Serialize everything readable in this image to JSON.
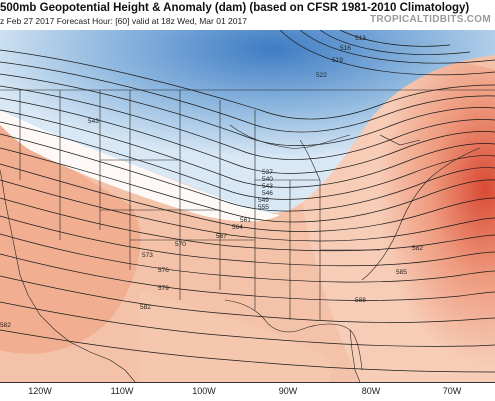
{
  "header": {
    "title": "500mb Geopotential Height & Anomaly (dam) (based on CFSR 1981-2010 Climatology)",
    "subtitle": "z Feb 27 2017   Forecast Hour: [60]   valid at 18z Wed, Mar 01 2017",
    "brand": "TROPICALTIDBITS.COM"
  },
  "map": {
    "contour_labels": [
      "513",
      "516",
      "519",
      "522",
      "543",
      "537",
      "540",
      "543",
      "546",
      "549",
      "555",
      "561",
      "564",
      "567",
      "570",
      "573",
      "576",
      "579",
      "582",
      "585",
      "588",
      "582",
      "582"
    ],
    "colors": {
      "negative_anomaly_deep": "#3f7cc4",
      "negative_anomaly": "#8fb8df",
      "neutral": "#ffffff",
      "positive_anomaly": "#f2b59a",
      "positive_anomaly_strong": "#e2674a"
    }
  },
  "longitude_axis": [
    "120W",
    "110W",
    "100W",
    "90W",
    "80W",
    "70W"
  ]
}
